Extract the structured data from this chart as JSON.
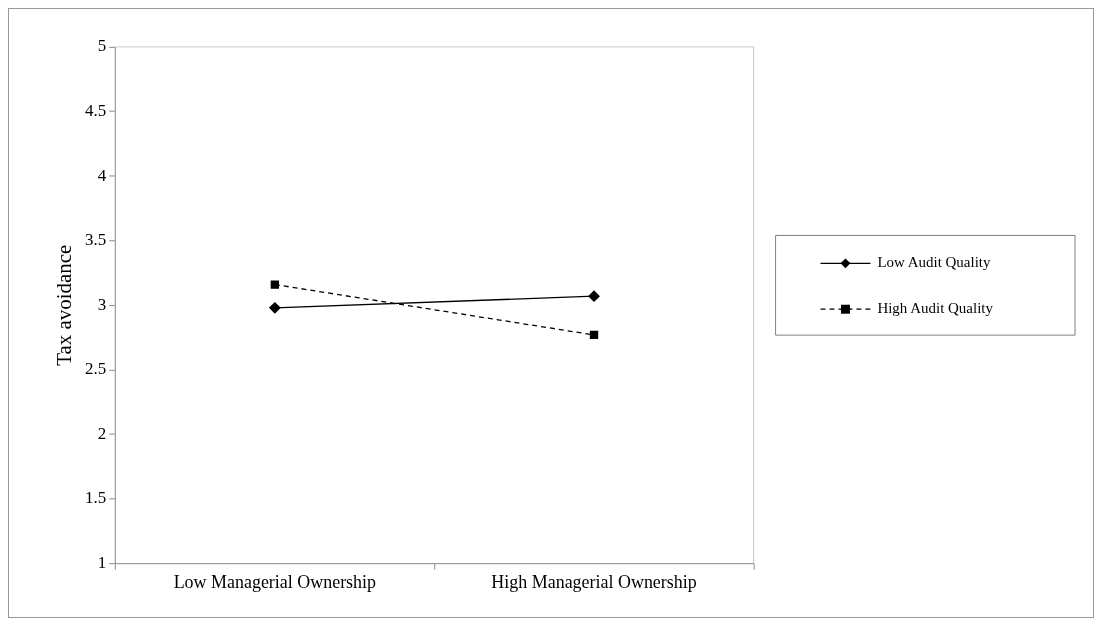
{
  "chart_data": {
    "type": "line",
    "ylabel": "Tax avoidance",
    "categories": [
      "Low Managerial Ownership",
      "High Managerial Ownership"
    ],
    "series": [
      {
        "name": "Low Audit Quality",
        "color": "#000000",
        "values": [
          2.98,
          3.07
        ],
        "marker": "diamond",
        "line_style": "solid"
      },
      {
        "name": "High Audit Quality",
        "color": "#000000",
        "values": [
          3.16,
          2.77
        ],
        "marker": "square",
        "line_style": "dashed"
      }
    ],
    "ylim": [
      1,
      5
    ],
    "yticks": [
      1,
      1.5,
      2,
      2.5,
      3,
      3.5,
      4,
      4.5,
      5
    ],
    "grid": false,
    "legend": "right"
  }
}
